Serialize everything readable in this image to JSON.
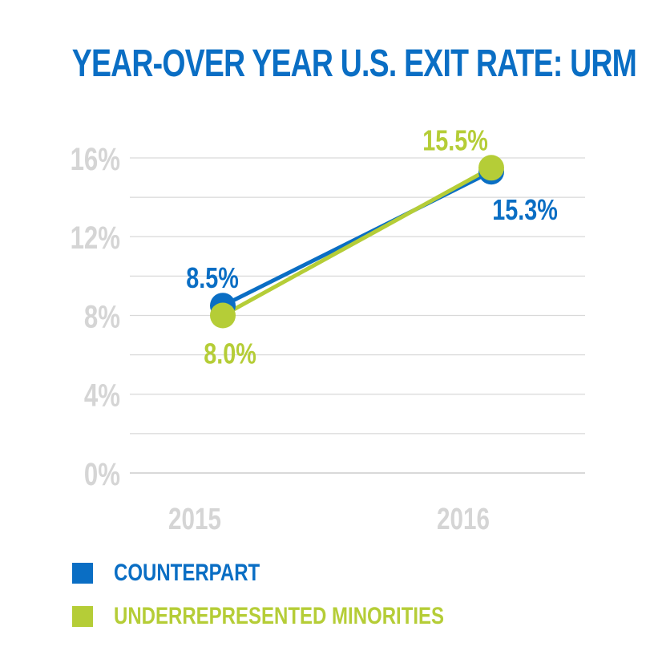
{
  "chart_data": {
    "type": "line",
    "title": "YEAR-OVER YEAR U.S. EXIT RATE: URM",
    "categories": [
      "2015",
      "2016"
    ],
    "x_tick_labels": [
      "2015",
      "2016"
    ],
    "ylim": [
      0,
      16
    ],
    "y_ticks": [
      0,
      4,
      8,
      12,
      16
    ],
    "y_tick_labels": [
      "0%",
      "4%",
      "8%",
      "12%",
      "16%"
    ],
    "grid": true,
    "legend_position": "bottom-left",
    "series": [
      {
        "name": "COUNTERPART",
        "color": "#0a6ec4",
        "values": [
          8.5,
          15.3
        ],
        "labels": [
          "8.5%",
          "15.3%"
        ]
      },
      {
        "name": "UNDERREPRESENTED MINORITIES",
        "color": "#b5cd37",
        "values": [
          8.0,
          15.5
        ],
        "labels": [
          "8.0%",
          "15.5%"
        ]
      }
    ]
  }
}
